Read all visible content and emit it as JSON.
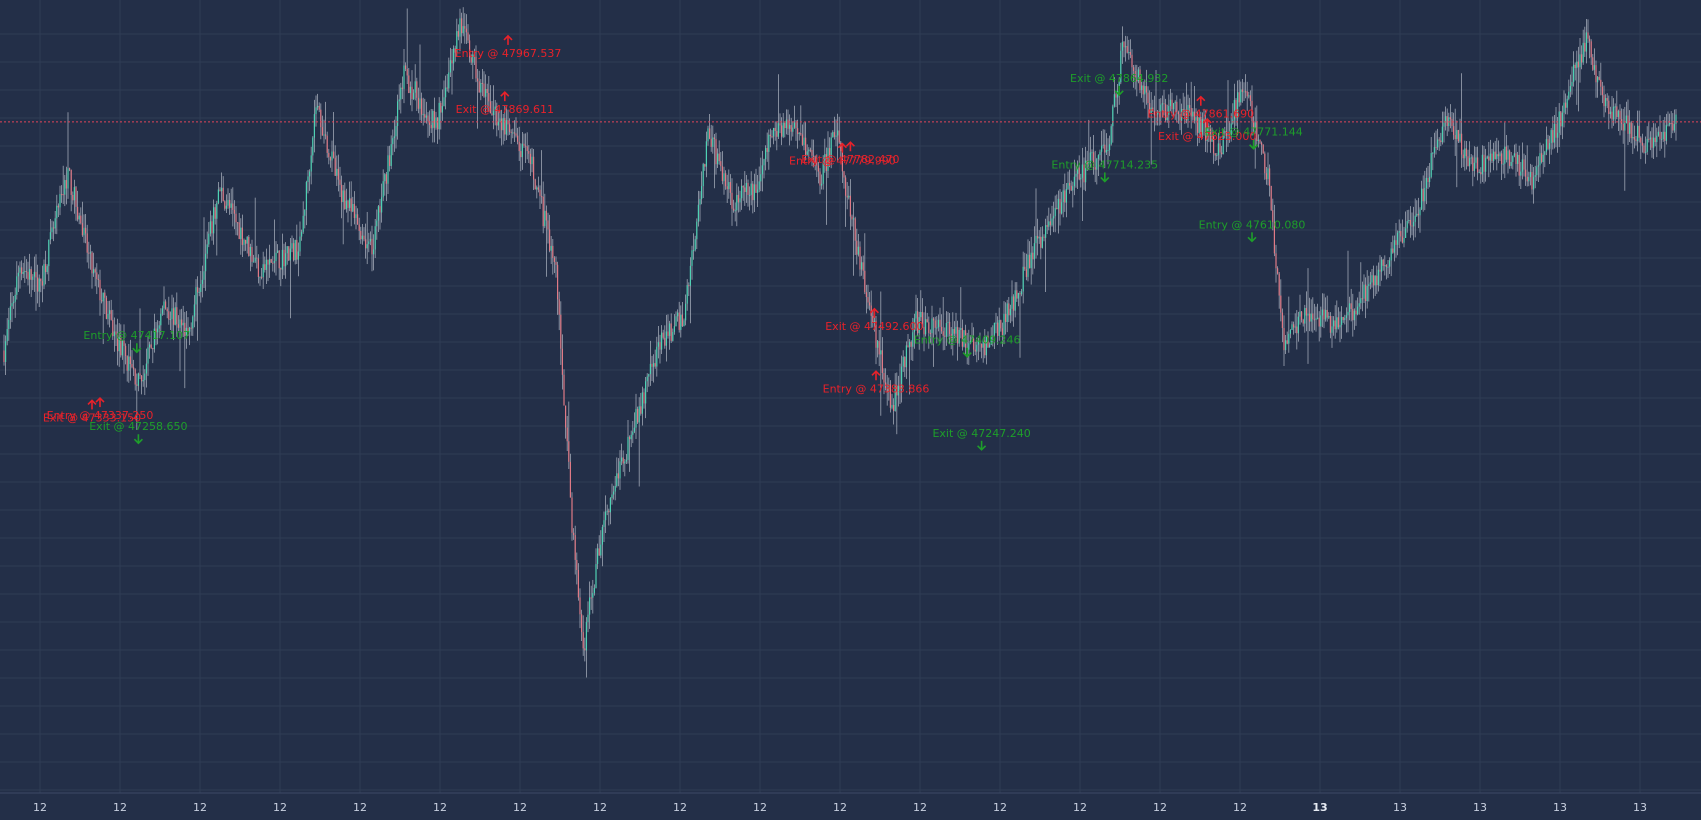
{
  "colors": {
    "background": "#232f48",
    "grid": "#2f3c55",
    "up": "#4fd1b4",
    "down": "#e07a86",
    "wick": "#c8cdd8",
    "buy_marker": "#1e9e2a",
    "sell_marker": "#e8222a",
    "price_line": "#e0455a",
    "axis_text": "#c9d1e0"
  },
  "chart_data": {
    "type": "candlestick",
    "title": "",
    "xlabel": "",
    "ylabel": "",
    "grid": true,
    "ylim": [
      46650,
      48030
    ],
    "current_price": 47818,
    "x_tick_labels": [
      {
        "label": "12",
        "bold": false,
        "i": 10
      },
      {
        "label": "12",
        "bold": false,
        "i": 60
      },
      {
        "label": "12",
        "bold": false,
        "i": 110
      },
      {
        "label": "12",
        "bold": false,
        "i": 160
      },
      {
        "label": "12",
        "bold": false,
        "i": 210
      },
      {
        "label": "12",
        "bold": false,
        "i": 260
      },
      {
        "label": "12",
        "bold": false,
        "i": 310
      },
      {
        "label": "12",
        "bold": false,
        "i": 360
      },
      {
        "label": "12",
        "bold": false,
        "i": 410
      },
      {
        "label": "12",
        "bold": false,
        "i": 460
      },
      {
        "label": "12",
        "bold": false,
        "i": 510
      },
      {
        "label": "12",
        "bold": false,
        "i": 560
      },
      {
        "label": "12",
        "bold": false,
        "i": 610
      },
      {
        "label": "12",
        "bold": false,
        "i": 660
      },
      {
        "label": "12",
        "bold": false,
        "i": 710
      },
      {
        "label": "12",
        "bold": false,
        "i": 760
      },
      {
        "label": "13",
        "bold": true,
        "i": 810
      },
      {
        "label": "13",
        "bold": false,
        "i": 860
      },
      {
        "label": "13",
        "bold": false,
        "i": 910
      },
      {
        "label": "13",
        "bold": false,
        "i": 960
      },
      {
        "label": "13",
        "bold": false,
        "i": 1010
      }
    ],
    "price_path": [
      [
        0,
        47420
      ],
      [
        10,
        47570
      ],
      [
        22,
        47530
      ],
      [
        40,
        47730
      ],
      [
        55,
        47560
      ],
      [
        70,
        47440
      ],
      [
        85,
        47360
      ],
      [
        100,
        47500
      ],
      [
        115,
        47450
      ],
      [
        135,
        47700
      ],
      [
        160,
        47560
      ],
      [
        185,
        47600
      ],
      [
        195,
        47850
      ],
      [
        210,
        47700
      ],
      [
        230,
        47590
      ],
      [
        250,
        47900
      ],
      [
        270,
        47810
      ],
      [
        285,
        47990
      ],
      [
        300,
        47860
      ],
      [
        315,
        47800
      ],
      [
        330,
        47740
      ],
      [
        345,
        47560
      ],
      [
        355,
        47120
      ],
      [
        362,
        46900
      ],
      [
        375,
        47130
      ],
      [
        395,
        47300
      ],
      [
        410,
        47430
      ],
      [
        425,
        47480
      ],
      [
        440,
        47800
      ],
      [
        455,
        47680
      ],
      [
        470,
        47700
      ],
      [
        480,
        47800
      ],
      [
        495,
        47820
      ],
      [
        510,
        47720
      ],
      [
        520,
        47800
      ],
      [
        533,
        47600
      ],
      [
        545,
        47440
      ],
      [
        555,
        47320
      ],
      [
        570,
        47470
      ],
      [
        590,
        47460
      ],
      [
        610,
        47420
      ],
      [
        625,
        47470
      ],
      [
        645,
        47600
      ],
      [
        665,
        47700
      ],
      [
        690,
        47780
      ],
      [
        700,
        47960
      ],
      [
        715,
        47850
      ],
      [
        740,
        47830
      ],
      [
        760,
        47770
      ],
      [
        775,
        47880
      ],
      [
        790,
        47720
      ],
      [
        800,
        47440
      ],
      [
        815,
        47490
      ],
      [
        835,
        47460
      ],
      [
        850,
        47520
      ],
      [
        870,
        47600
      ],
      [
        885,
        47680
      ],
      [
        900,
        47820
      ],
      [
        920,
        47740
      ],
      [
        940,
        47760
      ],
      [
        955,
        47720
      ],
      [
        970,
        47800
      ],
      [
        980,
        47900
      ],
      [
        990,
        47960
      ],
      [
        1000,
        47850
      ],
      [
        1015,
        47810
      ],
      [
        1030,
        47770
      ],
      [
        1045,
        47818
      ]
    ],
    "trade_markers": [
      {
        "kind": "entry",
        "side": "buy",
        "price": 47417.107,
        "label": "Entry @  47417.107",
        "i": 83
      },
      {
        "kind": "exit",
        "side": "sell",
        "price": 47333.15,
        "label": "Exit @ 47333.150",
        "i": 55
      },
      {
        "kind": "entry",
        "side": "sell",
        "price": 47337.25,
        "label": "Entry @  47337.250",
        "i": 60
      },
      {
        "kind": "exit",
        "side": "buy",
        "price": 47258.65,
        "label": "Exit @  47258.650",
        "i": 84
      },
      {
        "kind": "entry",
        "side": "sell",
        "price": 47967.537,
        "label": "Entry @  47967.537",
        "i": 315
      },
      {
        "kind": "exit",
        "side": "sell",
        "price": 47869.611,
        "label": "Exit @  47869.611",
        "i": 313
      },
      {
        "kind": "exit",
        "side": "sell",
        "price": 47782.47,
        "label": "Exit @ 47782.470",
        "i": 529
      },
      {
        "kind": "entry",
        "side": "sell",
        "price": 47779.99,
        "label": "Entry @  47779.990",
        "i": 524
      },
      {
        "kind": "exit",
        "side": "sell",
        "price": 47492.6,
        "label": "Exit @  47492.600",
        "i": 544
      },
      {
        "kind": "entry",
        "side": "sell",
        "price": 47383.866,
        "label": "Entry @  47383.866",
        "i": 545
      },
      {
        "kind": "entry",
        "side": "buy",
        "price": 47409.246,
        "label": "Entry @  47409.246",
        "i": 602
      },
      {
        "kind": "exit",
        "side": "buy",
        "price": 47247.24,
        "label": "Exit @  47247.240",
        "i": 611
      },
      {
        "kind": "exit",
        "side": "buy",
        "price": 47864.932,
        "label": "Exit @  47864.932",
        "i": 697
      },
      {
        "kind": "entry",
        "side": "buy",
        "price": 47714.235,
        "label": "Entry @  47714.235",
        "i": 688
      },
      {
        "kind": "exit",
        "side": "sell",
        "price": 47823.0,
        "label": "Exit @  47823.000",
        "i": 752
      },
      {
        "kind": "entry",
        "side": "sell",
        "price": 47861.69,
        "label": "Entry @  47861.690",
        "i": 748
      },
      {
        "kind": "exit",
        "side": "buy",
        "price": 47771.144,
        "label": "Exit @  47771.144",
        "i": 781
      },
      {
        "kind": "entry",
        "side": "buy",
        "price": 47610.08,
        "label": "Entry @  47610.080",
        "i": 780
      }
    ]
  }
}
